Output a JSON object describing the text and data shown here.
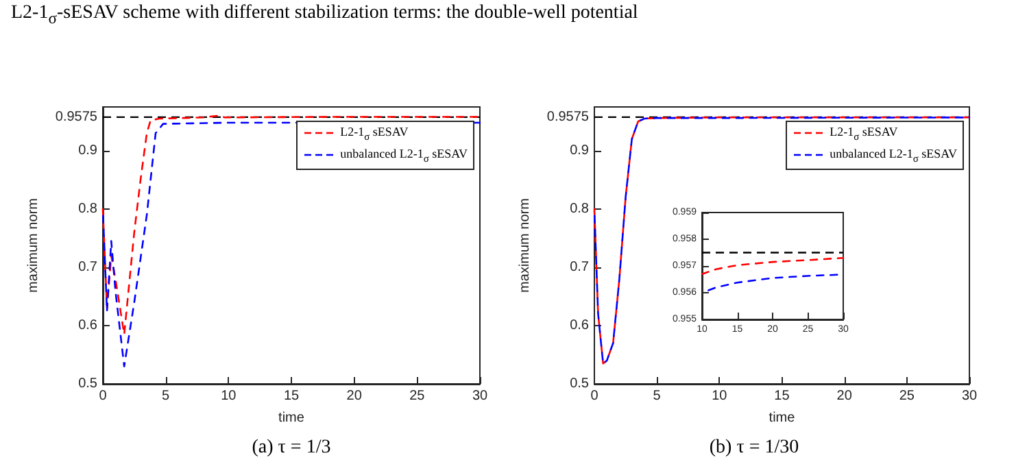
{
  "chart_data": [
    {
      "type": "line",
      "title": "L2-1$_{σ}$-sESAV scheme with different stabilization terms: the double-well potential",
      "xlabel": "time",
      "ylabel": "maximum norm",
      "annotations": [
        "(a) τ = 1/3"
      ],
      "xlim": [
        0,
        30
      ],
      "ylim": [
        0.5,
        0.975
      ],
      "xticks": [
        0,
        5,
        10,
        15,
        20,
        25,
        30
      ],
      "yticks": [
        0.5,
        0.6,
        0.7,
        0.8,
        0.9,
        0.9575
      ],
      "grid": false,
      "legend": "top right",
      "line_style": "dashed",
      "marker": "none",
      "ref_lines": [
        {
          "axis": "y",
          "value": 0.9575,
          "color": "#000000",
          "line_style": "dashed"
        }
      ],
      "series": [
        {
          "name": "L2-1$_{σ}$ sESAV",
          "color": "#ff0000",
          "x": [
            0,
            0.33,
            0.67,
            1.0,
            1.7,
            2.5,
            3.0,
            3.5,
            3.8,
            4.5,
            8,
            9.2,
            9.7,
            19,
            30
          ],
          "values": [
            0.8,
            0.63,
            0.72,
            0.68,
            0.585,
            0.76,
            0.85,
            0.93,
            0.952,
            0.955,
            0.957,
            0.96,
            0.957,
            0.958,
            0.958
          ]
        },
        {
          "name": "unbalanced L2-1$_{σ}$ sESAV",
          "color": "#0000ff",
          "x": [
            0,
            0.33,
            0.67,
            1.0,
            1.7,
            2.5,
            3.5,
            4.2,
            4.8,
            10,
            30
          ],
          "values": [
            0.8,
            0.625,
            0.745,
            0.66,
            0.53,
            0.64,
            0.79,
            0.93,
            0.946,
            0.948,
            0.948
          ]
        }
      ]
    },
    {
      "type": "line",
      "xlabel": "time",
      "ylabel": "maximum norm",
      "annotations": [
        "(b) τ = 1/30"
      ],
      "xlim": [
        0,
        30
      ],
      "ylim": [
        0.5,
        0.975
      ],
      "xticks": [
        0,
        5,
        10,
        15,
        20,
        25,
        30
      ],
      "yticks": [
        0.5,
        0.6,
        0.7,
        0.8,
        0.9,
        0.9575
      ],
      "grid": false,
      "legend": "top right",
      "line_style": "dashed",
      "marker": "none",
      "ref_lines": [
        {
          "axis": "y",
          "value": 0.9575,
          "color": "#000000",
          "line_style": "dashed"
        }
      ],
      "series": [
        {
          "name": "L2-1$_{σ}$ sESAV",
          "color": "#ff0000",
          "x": [
            0,
            0.3,
            0.7,
            1.0,
            1.5,
            2,
            2.5,
            3,
            3.5,
            4,
            5,
            10,
            30
          ],
          "values": [
            0.8,
            0.62,
            0.535,
            0.54,
            0.57,
            0.68,
            0.82,
            0.92,
            0.95,
            0.955,
            0.956,
            0.957,
            0.957
          ]
        },
        {
          "name": "unbalanced L2-1$_{σ}$ sESAV",
          "color": "#0000ff",
          "x": [
            0,
            0.3,
            0.7,
            1.0,
            1.5,
            2,
            2.5,
            3,
            3.5,
            4,
            5,
            10,
            30
          ],
          "values": [
            0.8,
            0.62,
            0.535,
            0.54,
            0.57,
            0.68,
            0.82,
            0.92,
            0.95,
            0.955,
            0.956,
            0.956,
            0.957
          ]
        }
      ]
    },
    {
      "type": "line",
      "xlim": [
        10,
        30
      ],
      "ylim": [
        0.955,
        0.959
      ],
      "xticks": [
        10,
        15,
        20,
        25,
        30
      ],
      "yticks": [
        0.955,
        0.956,
        0.957,
        0.958,
        0.959
      ],
      "grid": false,
      "line_style": "dashed",
      "marker": "none",
      "ref_lines": [
        {
          "axis": "y",
          "value": 0.9575,
          "color": "#000000",
          "line_style": "dashed"
        }
      ],
      "series": [
        {
          "color": "#ff0000",
          "x": [
            10,
            12,
            15,
            20,
            25,
            30
          ],
          "values": [
            0.9567,
            0.95688,
            0.95703,
            0.95715,
            0.95722,
            0.9573
          ]
        },
        {
          "color": "#0000ff",
          "x": [
            10,
            12,
            15,
            20,
            25,
            30
          ],
          "values": [
            0.956,
            0.9562,
            0.95638,
            0.95655,
            0.95663,
            0.95668
          ]
        }
      ]
    }
  ]
}
